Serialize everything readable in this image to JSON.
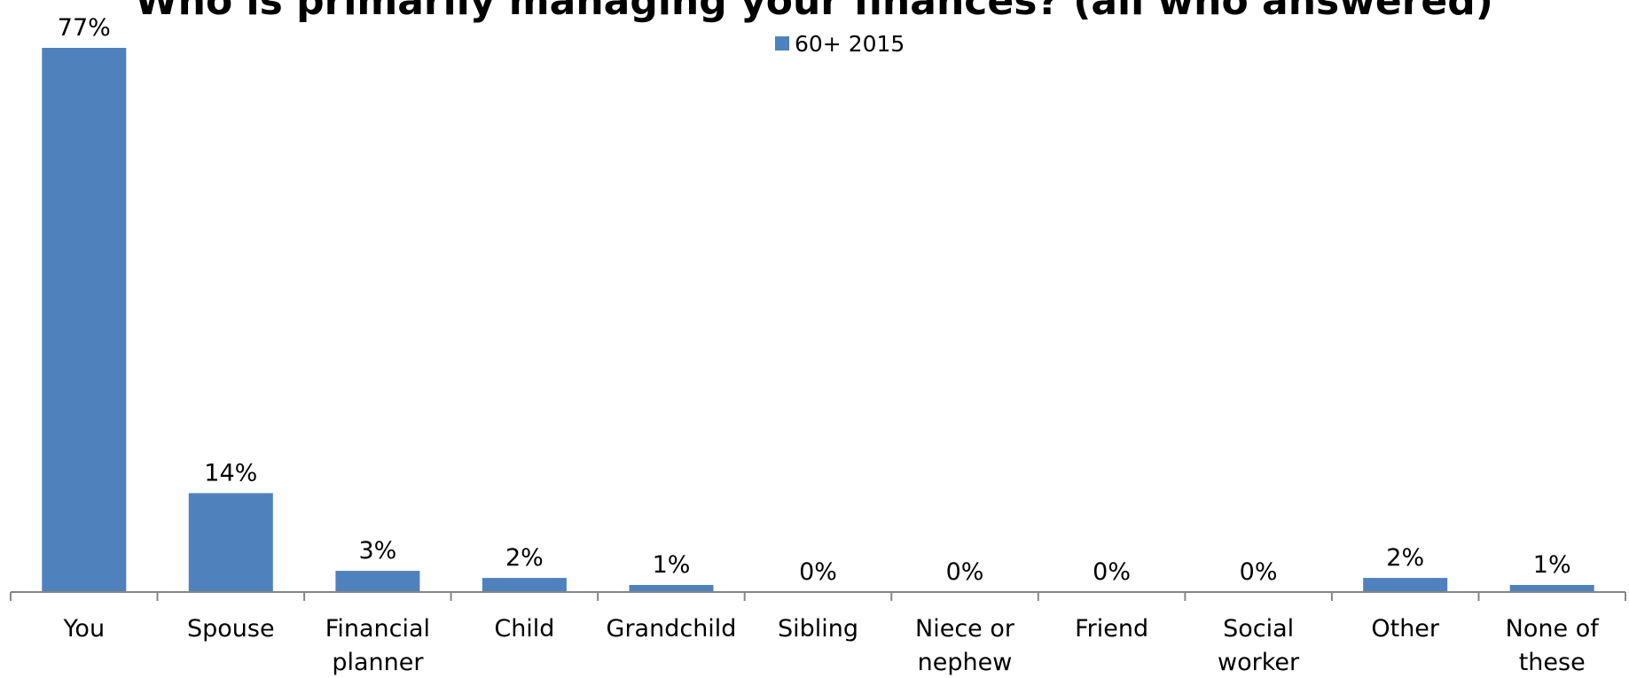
{
  "chart_data": {
    "type": "bar",
    "title": "Who is primarily managing your finances? (all who answered)",
    "xlabel": "",
    "ylabel": "",
    "categories": [
      [
        "You"
      ],
      [
        "Spouse"
      ],
      [
        "Financial",
        "planner"
      ],
      [
        "Child"
      ],
      [
        "Grandchild"
      ],
      [
        "Sibling"
      ],
      [
        "Niece or",
        "nephew"
      ],
      [
        "Friend"
      ],
      [
        "Social",
        "worker"
      ],
      [
        "Other"
      ],
      [
        "None of",
        "these"
      ]
    ],
    "series": [
      {
        "name": "60+ 2015",
        "color": "#4f81bd",
        "values": [
          77,
          14,
          3,
          2,
          1,
          0,
          0,
          0,
          0,
          2,
          1
        ],
        "labels": [
          "77%",
          "14%",
          "3%",
          "2%",
          "1%",
          "0%",
          "0%",
          "0%",
          "0%",
          "2%",
          "1%"
        ]
      }
    ],
    "ylim": [
      0,
      77
    ],
    "legend_position": "top-center",
    "grid": false
  }
}
